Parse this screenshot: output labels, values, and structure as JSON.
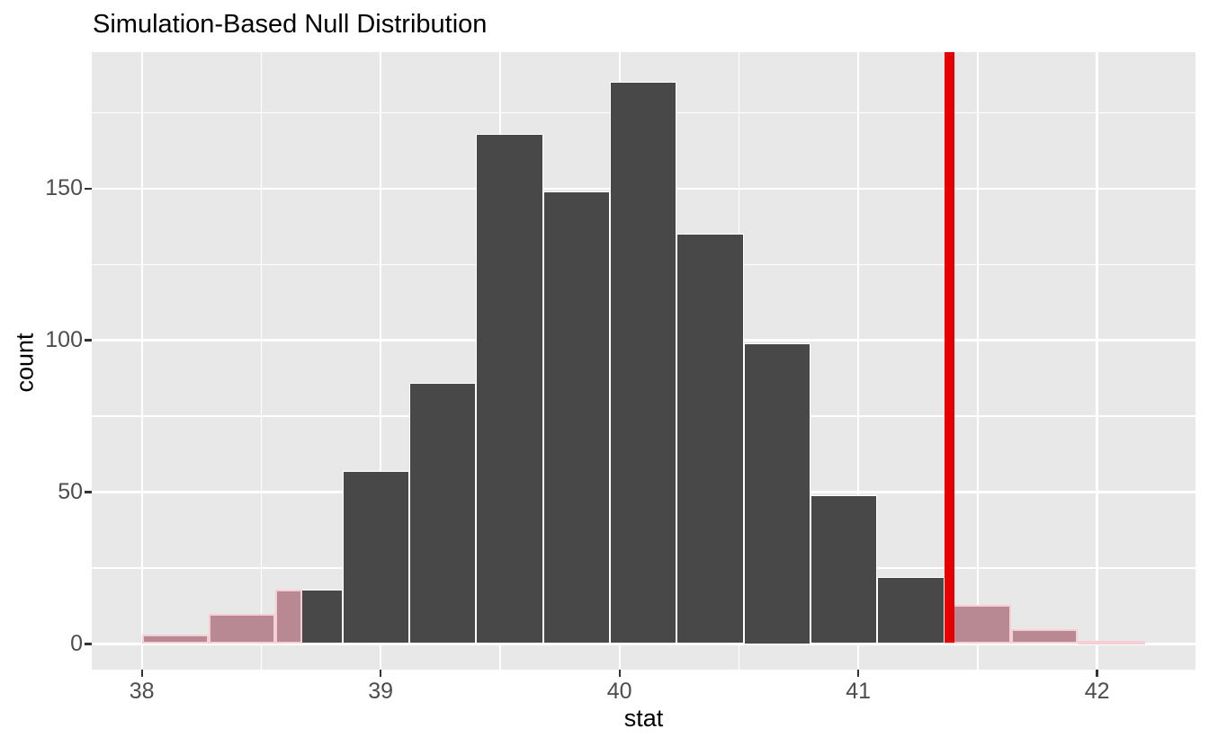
{
  "title": "Simulation-Based Null Distribution",
  "x_axis": {
    "label": "stat",
    "tick_labels": [
      "38",
      "39",
      "40",
      "41",
      "42"
    ]
  },
  "y_axis": {
    "label": "count",
    "tick_labels": [
      "0",
      "50",
      "100",
      "150"
    ]
  },
  "chart_data": {
    "type": "bar",
    "subtype": "histogram",
    "title": "Simulation-Based Null Distribution",
    "xlabel": "stat",
    "ylabel": "count",
    "bin_start": 38.0,
    "bin_width": 0.28,
    "bin_edges": [
      38.0,
      38.28,
      38.56,
      38.84,
      39.12,
      39.4,
      39.68,
      39.96,
      40.24,
      40.52,
      40.8,
      41.08,
      41.36,
      41.64,
      41.92,
      42.2
    ],
    "counts": [
      3,
      10,
      18,
      57,
      86,
      168,
      149,
      185,
      135,
      99,
      49,
      22,
      13,
      5,
      1
    ],
    "x_major_ticks": [
      38,
      39,
      40,
      41,
      42
    ],
    "x_minor_gridlines": [
      38.5,
      39.5,
      40.5,
      41.5
    ],
    "y_major_ticks": [
      0,
      50,
      100,
      150
    ],
    "y_minor_gridlines": [
      25,
      75,
      125,
      175
    ],
    "x_domain": [
      37.79,
      42.412
    ],
    "y_domain": [
      -8.44,
      194.9
    ],
    "observed_stat": 41.38,
    "shade": {
      "direction": "two-sided",
      "left_tail_end": 38.67,
      "right_tail_start": 41.38,
      "segments": [
        {
          "from": 38.0,
          "to": 38.28,
          "count": 3
        },
        {
          "from": 38.28,
          "to": 38.56,
          "count": 10
        },
        {
          "from": 38.56,
          "to": 38.67,
          "count": 18
        },
        {
          "from": 41.36,
          "to": 41.64,
          "count": 13
        },
        {
          "from": 41.64,
          "to": 41.92,
          "count": 5
        },
        {
          "from": 41.92,
          "to": 42.2,
          "count": 1
        }
      ]
    },
    "grid": true,
    "legend": "none",
    "colors": {
      "bar_fill": "#484848",
      "bar_border": "#FFFFFF",
      "shade_fill": "#B88893",
      "shade_border": "#F5CED6",
      "obs_line": "#E60000",
      "panel_bg": "#E8E8E8",
      "gridline": "#FFFFFF",
      "tick_mark": "#333333",
      "tick_label": "#4D4D4D",
      "axis_title": "#000000",
      "title": "#000000"
    }
  }
}
